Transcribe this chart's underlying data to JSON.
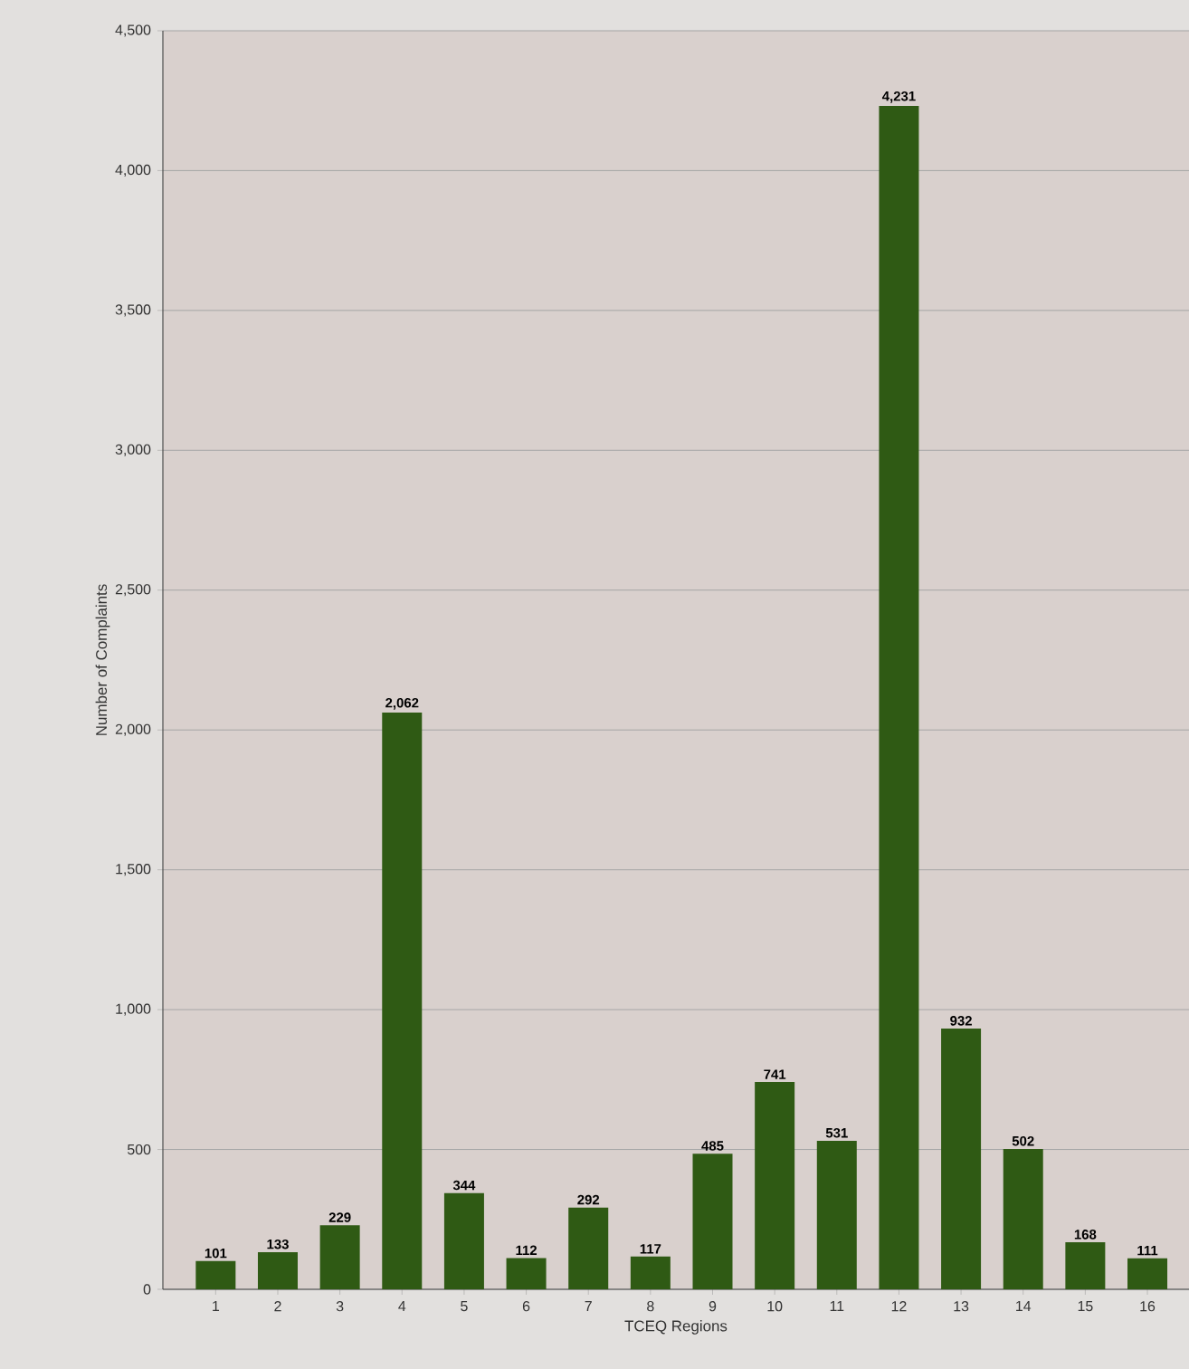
{
  "chart_data": {
    "type": "bar",
    "xlabel": "TCEQ Regions",
    "ylabel": "Number of Complaints",
    "categories": [
      "1",
      "2",
      "3",
      "4",
      "5",
      "6",
      "7",
      "8",
      "9",
      "10",
      "11",
      "12",
      "13",
      "14",
      "15",
      "16"
    ],
    "values": [
      101,
      133,
      229,
      2062,
      344,
      112,
      292,
      117,
      485,
      741,
      531,
      4231,
      932,
      502,
      168,
      111
    ],
    "value_labels": [
      "101",
      "133",
      "229",
      "2,062",
      "344",
      "112",
      "292",
      "117",
      "485",
      "741",
      "531",
      "4,231",
      "932",
      "502",
      "168",
      "111"
    ],
    "color": "#2f5a14",
    "ylim": [
      0,
      4500
    ],
    "yticks": [
      0,
      500,
      {
        "value": 1000,
        "label": "1,000"
      },
      {
        "value": 1500,
        "label": "1,500"
      },
      {
        "value": 2000,
        "label": "2,000"
      },
      {
        "value": 2500,
        "label": "2,500"
      },
      {
        "value": 3000,
        "label": "3,000"
      },
      {
        "value": 3500,
        "label": "3,500"
      },
      {
        "value": 4000,
        "label": "4,000"
      },
      {
        "value": 4500,
        "label": "4,500"
      }
    ],
    "grid": "y"
  }
}
